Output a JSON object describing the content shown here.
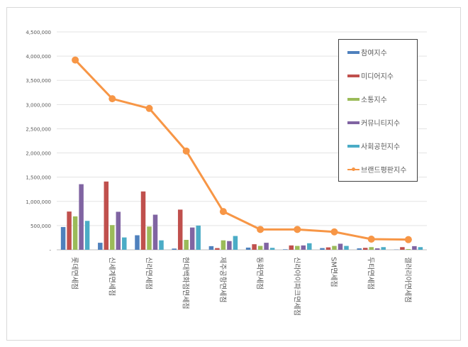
{
  "chart_data": {
    "type": "bar",
    "title": "",
    "xlabel": "",
    "ylabel": "",
    "ylim": [
      0,
      4500000
    ],
    "yticks": [
      0,
      500000,
      1000000,
      1500000,
      2000000,
      2500000,
      3000000,
      3500000,
      4000000,
      4500000
    ],
    "ytick_labels": [
      "-",
      "500,000",
      "1,000,000",
      "1,500,000",
      "2,000,000",
      "2,500,000",
      "3,000,000",
      "3,500,000",
      "4,000,000",
      "4,500,000"
    ],
    "grid": true,
    "legend_position": "right",
    "categories": [
      "롯데면세점",
      "신세계면세점",
      "신라면세점",
      "현대백화점면세점",
      "제주공항면세점",
      "동화면세점",
      "신라아이파크면세점",
      "SM면세점",
      "두타면세점",
      "갤러리아면세점"
    ],
    "series": [
      {
        "name": "참여지수",
        "type": "bar",
        "color": "#4f81bd",
        "values": [
          470000,
          145000,
          300000,
          25000,
          75000,
          45000,
          10000,
          35000,
          30000,
          5000
        ]
      },
      {
        "name": "미디어지수",
        "type": "bar",
        "color": "#c0504d",
        "values": [
          790000,
          1410000,
          1205000,
          830000,
          35000,
          115000,
          90000,
          50000,
          40000,
          55000
        ]
      },
      {
        "name": "소통지수",
        "type": "bar",
        "color": "#9bbb59",
        "values": [
          690000,
          510000,
          480000,
          205000,
          195000,
          80000,
          80000,
          80000,
          55000,
          15000
        ]
      },
      {
        "name": "커뮤니티지수",
        "type": "bar",
        "color": "#8064a2",
        "values": [
          1355000,
          785000,
          725000,
          460000,
          180000,
          145000,
          90000,
          125000,
          30000,
          75000
        ]
      },
      {
        "name": "사회공헌지수",
        "type": "bar",
        "color": "#4bacc6",
        "values": [
          597000,
          255000,
          195000,
          500000,
          285000,
          40000,
          135000,
          80000,
          55000,
          55000
        ]
      },
      {
        "name": "브랜드평판지수",
        "type": "line",
        "color": "#f79646",
        "values": [
          3920000,
          3120000,
          2920000,
          2040000,
          790000,
          420000,
          420000,
          370000,
          220000,
          210000
        ]
      }
    ]
  }
}
